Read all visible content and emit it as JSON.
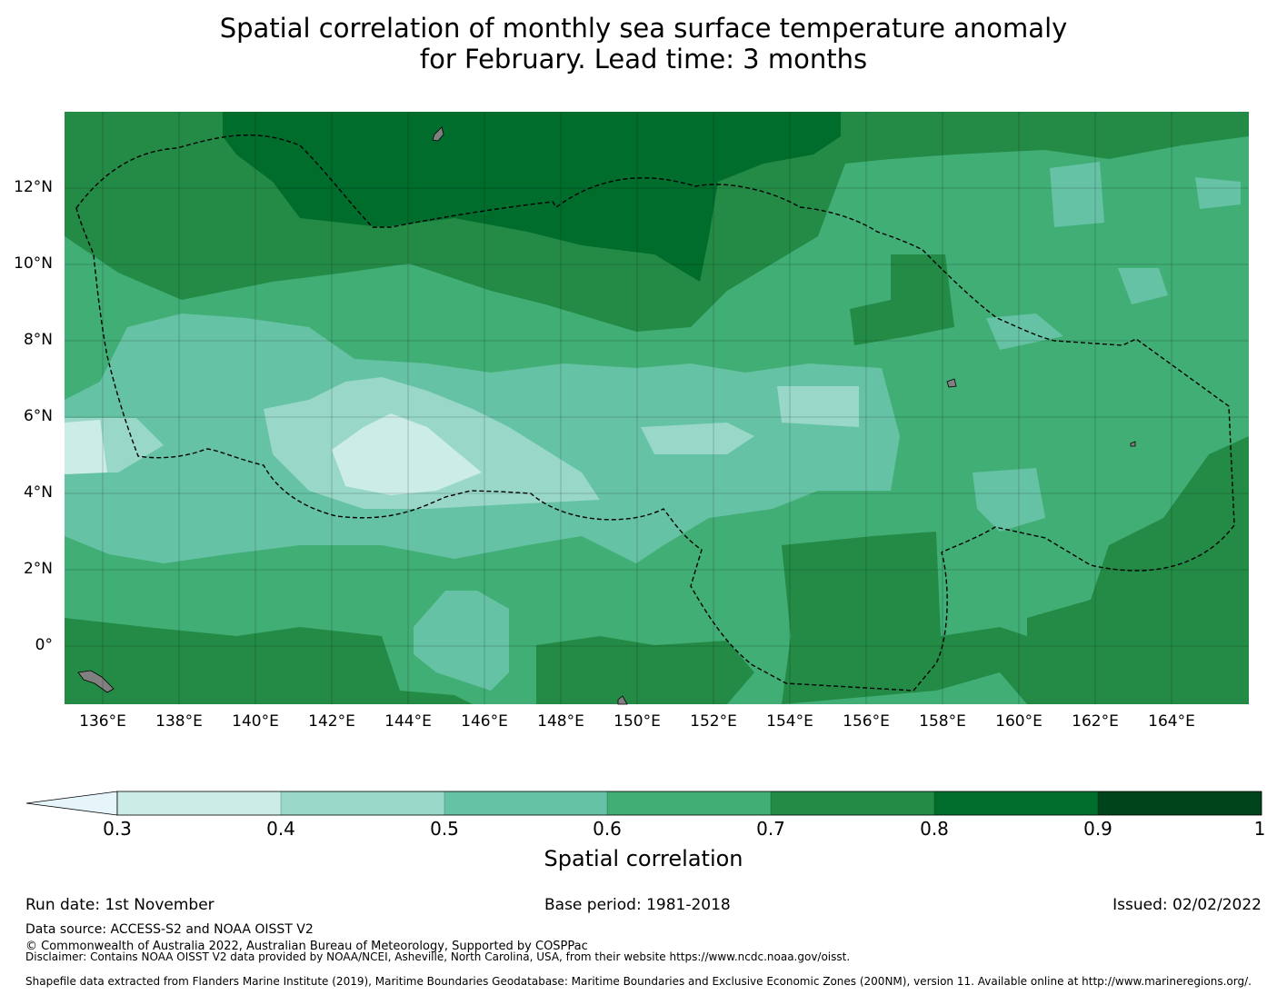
{
  "title": {
    "line1": "Spatial correlation of monthly sea surface temperature anomaly",
    "line2": "for February. Lead time: 3 months"
  },
  "map": {
    "lon_range": [
      135,
      166
    ],
    "lat_range": [
      -1.5,
      14
    ],
    "lon_ticks": [
      "136°E",
      "138°E",
      "140°E",
      "142°E",
      "144°E",
      "146°E",
      "148°E",
      "150°E",
      "152°E",
      "154°E",
      "156°E",
      "158°E",
      "160°E",
      "162°E",
      "164°E"
    ],
    "lat_ticks": [
      "12°N",
      "10°N",
      "8°N",
      "6°N",
      "4°N",
      "2°N",
      "0°"
    ],
    "land_color": "#808080",
    "boundary_style": "dashed"
  },
  "colorbar": {
    "title": "Spatial correlation",
    "ticks": [
      "0.3",
      "0.4",
      "0.5",
      "0.6",
      "0.7",
      "0.8",
      "0.9",
      "1"
    ],
    "colors": [
      "#e5f5f9",
      "#ccece6",
      "#99d8c9",
      "#66c2a4",
      "#41ae76",
      "#238b45",
      "#006d2c",
      "#00441b"
    ]
  },
  "footer": {
    "run_date": "Run date: 1st November",
    "base_period": "Base period: 1981-2018",
    "issued": "Issued: 02/02/2022",
    "data_source": "Data source: ACCESS-S2 and NOAA OISST V2",
    "copyright": "© Commonwealth of Australia 2022, Australian Bureau of Meteorology, Supported by COSPPac",
    "disclaimer": "Disclaimer: Contains NOAA OISST V2 data provided by NOAA/NCEI, Asheville, North Carolina, USA, from their website https://www.ncdc.noaa.gov/oisst.",
    "shapefile": "Shapefile data extracted from Flanders Marine Institute (2019), Maritime Boundaries Geodatabase: Maritime Boundaries and Exclusive Economic Zones (200NM), version 11. Available online at http://www.marineregions.org/."
  }
}
